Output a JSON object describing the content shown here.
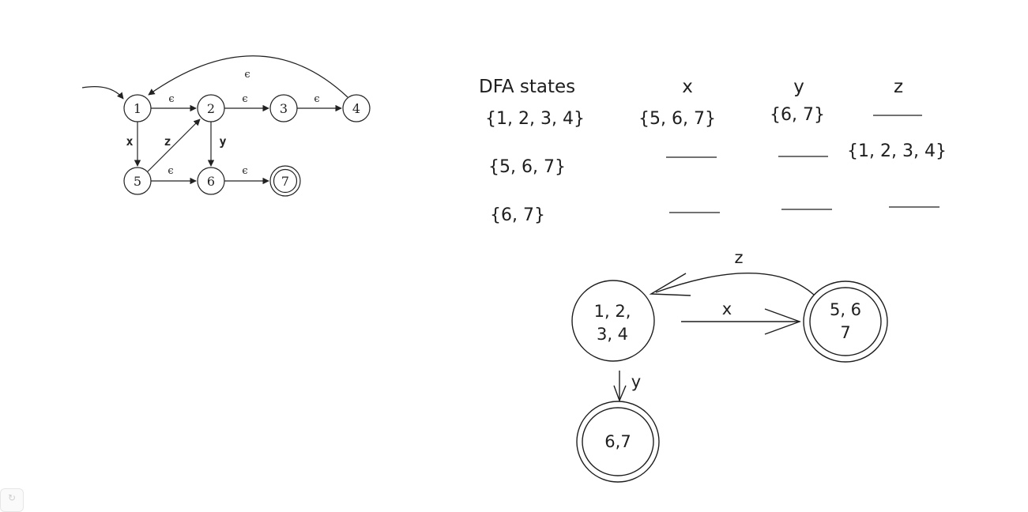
{
  "nfa": {
    "states": [
      "1",
      "2",
      "3",
      "4",
      "5",
      "6",
      "7"
    ],
    "edge_labels": {
      "e_1_2": "ϵ",
      "e_2_3": "ϵ",
      "e_3_4": "ϵ",
      "e_4_1": "ϵ",
      "x_1_5": "x",
      "z_5_2": "z",
      "y_2_6": "y",
      "e_5_6": "ϵ",
      "e_6_7": "ϵ"
    }
  },
  "table": {
    "headers": [
      "DFA states",
      "x",
      "y",
      "z"
    ],
    "rows": [
      {
        "state": "{1, 2, 3, 4}",
        "x": "{5, 6, 7}",
        "y": "{6, 7}",
        "z": "——"
      },
      {
        "state": "{5, 6, 7}",
        "x": "——",
        "y": "——",
        "z": "{1, 2, 3, 4}"
      },
      {
        "state": "{6, 7}",
        "x": "——",
        "y": "——",
        "z": "——"
      }
    ]
  },
  "dfa": {
    "state_a": {
      "line1": "1, 2,",
      "line2": "3, 4"
    },
    "state_b": {
      "line1": "5, 6",
      "line2": "7"
    },
    "state_c": {
      "line1": "6,7"
    },
    "edge_labels": {
      "a_to_b": "x",
      "b_to_a": "z",
      "a_to_c": "y"
    }
  },
  "colors": {
    "ink": "#1e1e1e",
    "nfa_ink": "#222222"
  }
}
